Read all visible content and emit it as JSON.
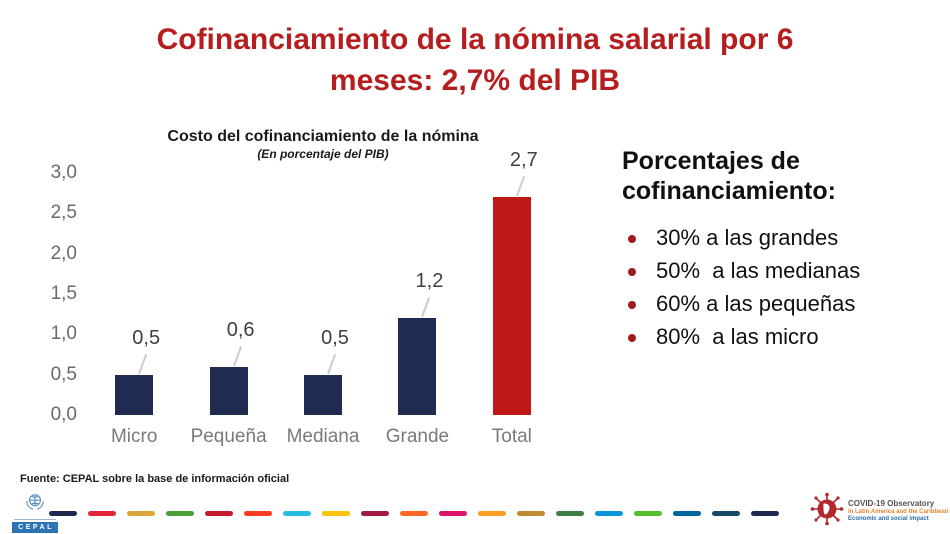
{
  "title": {
    "line1": "Cofinanciamiento de la nómina salarial por 6",
    "line2": "meses: 2,7% del PIB"
  },
  "chart_data": {
    "type": "bar",
    "title": "Costo del cofinanciamiento de la nómina",
    "subtitle": "(En porcentaje del PIB)",
    "categories": [
      "Micro",
      "Pequeña",
      "Mediana",
      "Grande",
      "Total"
    ],
    "values": [
      0.5,
      0.6,
      0.5,
      1.2,
      2.7
    ],
    "value_labels": [
      "0,5",
      "0,6",
      "0,5",
      "1,2",
      "2,7"
    ],
    "bar_colors": [
      "#1F2B50",
      "#1F2B50",
      "#1F2B50",
      "#1F2B50",
      "#C01818"
    ],
    "ylim": [
      0,
      3
    ],
    "yticks": [
      "3,0",
      "2,5",
      "2,0",
      "1,5",
      "1,0",
      "0,5",
      "0,0"
    ],
    "grid": false,
    "legend": "none",
    "xlabel": "",
    "ylabel": ""
  },
  "side_panel": {
    "heading": "Porcentajes de cofinanciamiento:",
    "bullets": [
      "30% a las grandes",
      "50%  a las medianas",
      "60% a las pequeñas",
      "80%  a las micro"
    ]
  },
  "footer": {
    "source": "Fuente: CEPAL sobre la base de información oficial",
    "cepal_logo_text": "CEPAL",
    "covid_logo": {
      "line1": "COVID-19 Observatory",
      "line2": "in Latin America and the Caribbean",
      "line3": "Economic and social impact"
    },
    "sdg_dash_colors": [
      "#1F2A50",
      "#E5243B",
      "#DDA63A",
      "#4C9F38",
      "#C5192D",
      "#FF3A21",
      "#26BDE2",
      "#FCC30B",
      "#A21942",
      "#FD6925",
      "#DD1367",
      "#FD9D24",
      "#BF8B2E",
      "#3F7E44",
      "#0A97D9",
      "#56C02B",
      "#00689D",
      "#19486A",
      "#1F2A50"
    ]
  },
  "colors": {
    "title_red": "#B51E1E",
    "bar_navy": "#1F2B50",
    "bar_red": "#C01818",
    "bullet_red": "#9E1B1B"
  }
}
